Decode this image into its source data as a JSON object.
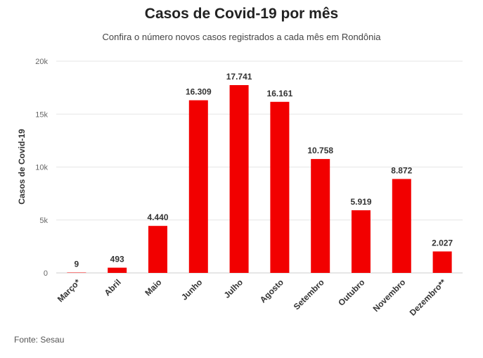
{
  "chart_data": {
    "type": "bar",
    "title": "Casos de Covid-19 por mês",
    "subtitle": "Confira o número novos casos registrados a cada mês em Rondônia",
    "xlabel": "",
    "ylabel": "Casos de Covid-19",
    "categories": [
      "Março*",
      "Abril",
      "Maio",
      "Junho",
      "Julho",
      "Agosto",
      "Setembro",
      "Outubro",
      "Novembro",
      "Dezembro**"
    ],
    "values": [
      9,
      493,
      4440,
      16309,
      17741,
      16161,
      10758,
      5919,
      8872,
      2027
    ],
    "data_labels": [
      "9",
      "493",
      "4.440",
      "16.309",
      "17.741",
      "16.161",
      "10.758",
      "5.919",
      "8.872",
      "2.027"
    ],
    "ylim": [
      0,
      20000
    ],
    "yticks": [
      0,
      5000,
      10000,
      15000,
      20000
    ],
    "ytick_labels": [
      "0",
      "5k",
      "10k",
      "15k",
      "20k"
    ],
    "grid": true,
    "bar_color": "#f20000",
    "grid_color": "#e6e6e6"
  },
  "source": "Fonte: Sesau"
}
